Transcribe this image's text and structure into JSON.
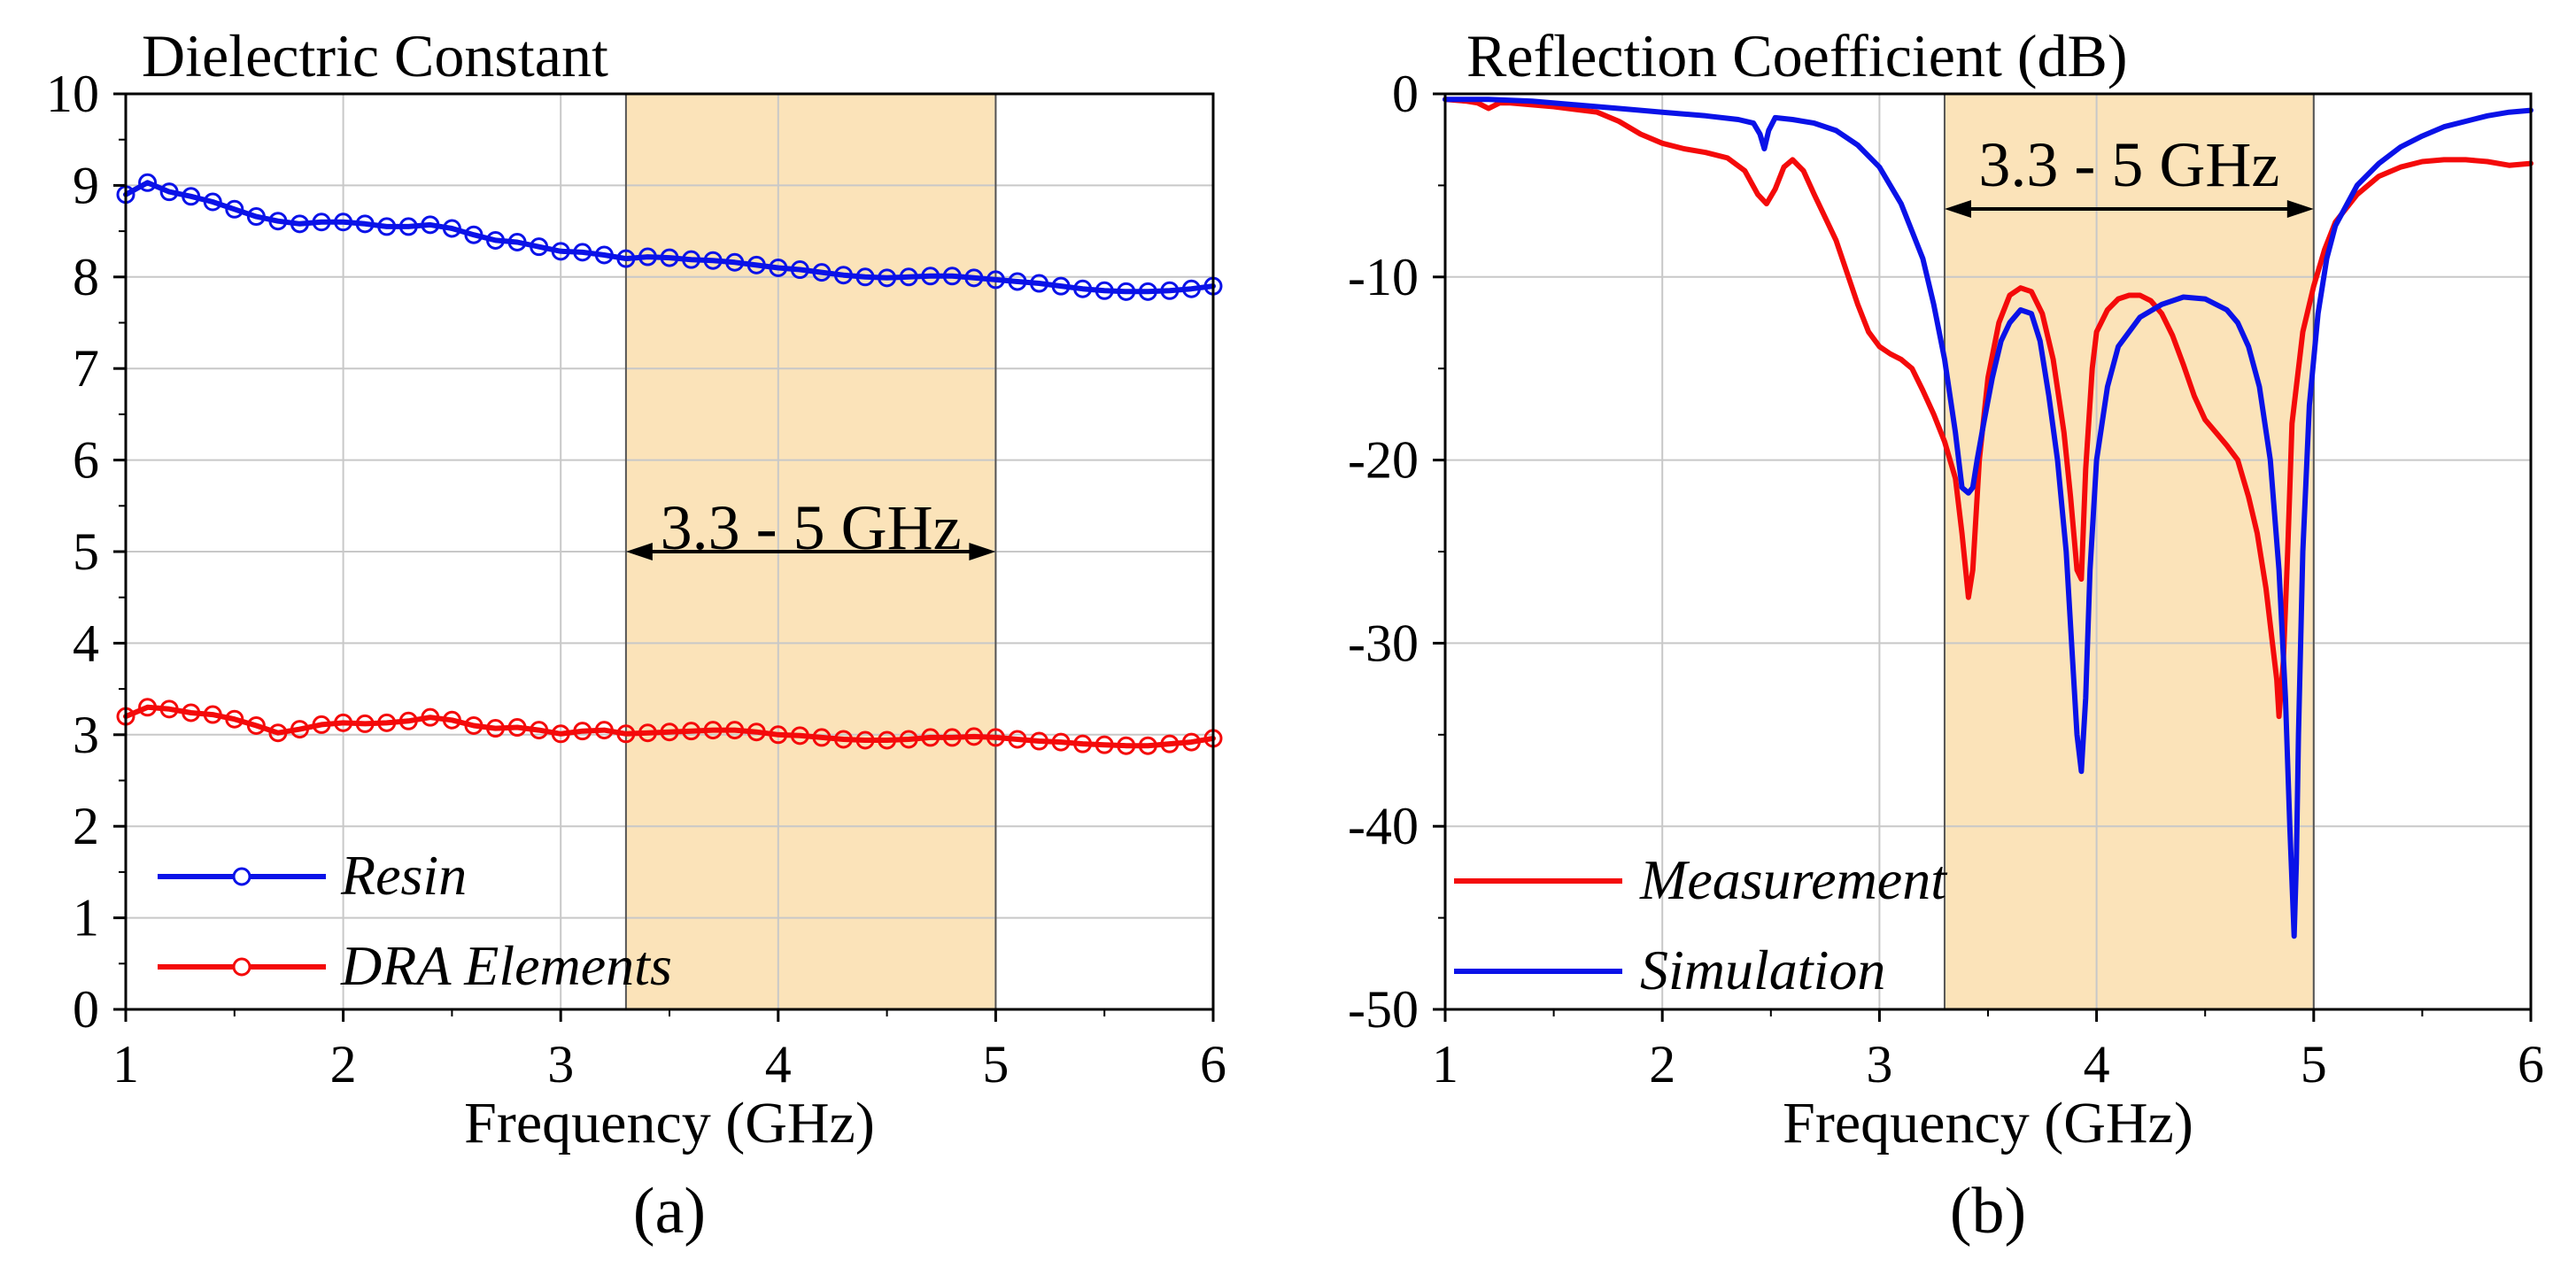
{
  "chart_data": [
    {
      "id": "a",
      "type": "line",
      "title": "Dielectric Constant",
      "xlabel": "Frequency (GHz)",
      "ylabel": "",
      "panel_label": "(a)",
      "xlim": [
        1,
        6
      ],
      "ylim": [
        0,
        10
      ],
      "xticks": [
        1,
        2,
        3,
        4,
        5,
        6
      ],
      "yticks": [
        0,
        1,
        2,
        3,
        4,
        5,
        6,
        7,
        8,
        9,
        10
      ],
      "xtick_labels": [
        "1",
        "2",
        "3",
        "4",
        "5",
        "6"
      ],
      "ytick_labels": [
        "0",
        "1",
        "2",
        "3",
        "4",
        "5",
        "6",
        "7",
        "8",
        "9",
        "10"
      ],
      "grid": true,
      "legend_position": "bottom-left",
      "band": {
        "start": 3.3,
        "end": 5,
        "label": "3.3 - 5 GHz",
        "color": "#fbe3b9"
      },
      "series": [
        {
          "name": "Resin",
          "color": "#0a12e8",
          "markers": true,
          "x": [
            1.0,
            1.1,
            1.2,
            1.3,
            1.4,
            1.5,
            1.6,
            1.7,
            1.8,
            1.9,
            2.0,
            2.1,
            2.2,
            2.3,
            2.4,
            2.5,
            2.6,
            2.7,
            2.8,
            2.9,
            3.0,
            3.1,
            3.2,
            3.3,
            3.4,
            3.5,
            3.6,
            3.7,
            3.8,
            3.9,
            4.0,
            4.1,
            4.2,
            4.3,
            4.4,
            4.5,
            4.6,
            4.7,
            4.8,
            4.9,
            5.0,
            5.1,
            5.2,
            5.3,
            5.4,
            5.5,
            5.6,
            5.7,
            5.8,
            5.9,
            6.0
          ],
          "y": [
            8.9,
            9.03,
            8.93,
            8.88,
            8.82,
            8.74,
            8.66,
            8.61,
            8.58,
            8.6,
            8.6,
            8.58,
            8.55,
            8.55,
            8.57,
            8.53,
            8.46,
            8.4,
            8.38,
            8.33,
            8.28,
            8.27,
            8.24,
            8.2,
            8.22,
            8.21,
            8.19,
            8.18,
            8.16,
            8.13,
            8.1,
            8.08,
            8.05,
            8.02,
            8.0,
            7.99,
            8.0,
            8.01,
            8.01,
            7.99,
            7.97,
            7.95,
            7.93,
            7.9,
            7.87,
            7.85,
            7.84,
            7.84,
            7.85,
            7.87,
            7.9
          ]
        },
        {
          "name": "DRA Elements",
          "color": "#f40a0a",
          "markers": true,
          "x": [
            1.0,
            1.1,
            1.2,
            1.3,
            1.4,
            1.5,
            1.6,
            1.7,
            1.8,
            1.9,
            2.0,
            2.1,
            2.2,
            2.3,
            2.4,
            2.5,
            2.6,
            2.7,
            2.8,
            2.9,
            3.0,
            3.1,
            3.2,
            3.3,
            3.4,
            3.5,
            3.6,
            3.7,
            3.8,
            3.9,
            4.0,
            4.1,
            4.2,
            4.3,
            4.4,
            4.5,
            4.6,
            4.7,
            4.8,
            4.9,
            5.0,
            5.1,
            5.2,
            5.3,
            5.4,
            5.5,
            5.6,
            5.7,
            5.8,
            5.9,
            6.0
          ],
          "y": [
            3.2,
            3.3,
            3.28,
            3.24,
            3.22,
            3.17,
            3.1,
            3.02,
            3.06,
            3.11,
            3.13,
            3.12,
            3.13,
            3.15,
            3.19,
            3.16,
            3.1,
            3.07,
            3.08,
            3.05,
            3.01,
            3.04,
            3.05,
            3.01,
            3.02,
            3.03,
            3.04,
            3.05,
            3.05,
            3.03,
            3.0,
            2.99,
            2.97,
            2.95,
            2.94,
            2.94,
            2.95,
            2.97,
            2.97,
            2.98,
            2.97,
            2.95,
            2.93,
            2.92,
            2.9,
            2.89,
            2.88,
            2.88,
            2.9,
            2.92,
            2.96
          ]
        }
      ]
    },
    {
      "id": "b",
      "type": "line",
      "title": "Reflection Coefficient (dB)",
      "xlabel": "Frequency (GHz)",
      "ylabel": "",
      "panel_label": "(b)",
      "xlim": [
        1,
        6
      ],
      "ylim": [
        -50,
        0
      ],
      "xticks": [
        1,
        2,
        3,
        4,
        5,
        6
      ],
      "yticks": [
        -50,
        -40,
        -30,
        -20,
        -10,
        0
      ],
      "xtick_labels": [
        "1",
        "2",
        "3",
        "4",
        "5",
        "6"
      ],
      "ytick_labels": [
        "-50",
        "-40",
        "-30",
        "-20",
        "-10",
        "0"
      ],
      "grid": true,
      "legend_position": "bottom-left",
      "band": {
        "start": 3.3,
        "end": 5,
        "label": "3.3 - 5 GHz",
        "color": "#fbe3b9"
      },
      "series": [
        {
          "name": "Measurement",
          "color": "#f40a0a",
          "markers": false,
          "x": [
            1.0,
            1.1,
            1.15,
            1.2,
            1.25,
            1.3,
            1.5,
            1.7,
            1.8,
            1.9,
            2.0,
            2.1,
            2.2,
            2.3,
            2.38,
            2.44,
            2.48,
            2.52,
            2.56,
            2.6,
            2.65,
            2.7,
            2.8,
            2.9,
            2.95,
            3.0,
            3.05,
            3.1,
            3.15,
            3.2,
            3.25,
            3.3,
            3.35,
            3.38,
            3.41,
            3.43,
            3.46,
            3.5,
            3.55,
            3.6,
            3.65,
            3.7,
            3.75,
            3.8,
            3.85,
            3.88,
            3.91,
            3.93,
            3.95,
            3.98,
            4.0,
            4.05,
            4.1,
            4.15,
            4.2,
            4.25,
            4.3,
            4.35,
            4.4,
            4.45,
            4.5,
            4.55,
            4.6,
            4.65,
            4.7,
            4.74,
            4.78,
            4.81,
            4.83,
            4.84,
            4.86,
            4.88,
            4.9,
            4.95,
            5.0,
            5.05,
            5.1,
            5.2,
            5.3,
            5.4,
            5.5,
            5.6,
            5.7,
            5.8,
            5.9,
            6.0
          ],
          "y": [
            -0.3,
            -0.4,
            -0.5,
            -0.8,
            -0.5,
            -0.5,
            -0.7,
            -1.0,
            -1.5,
            -2.2,
            -2.7,
            -3.0,
            -3.2,
            -3.5,
            -4.2,
            -5.5,
            -6.0,
            -5.2,
            -4.0,
            -3.6,
            -4.2,
            -5.5,
            -8.0,
            -11.5,
            -13.0,
            -13.8,
            -14.2,
            -14.5,
            -15.0,
            -16.2,
            -17.5,
            -19.0,
            -21.0,
            -24.0,
            -27.5,
            -26.0,
            -20.0,
            -15.5,
            -12.5,
            -11.0,
            -10.6,
            -10.8,
            -12.0,
            -14.5,
            -18.5,
            -22.0,
            -26.0,
            -26.5,
            -20.5,
            -15.0,
            -13.0,
            -11.8,
            -11.2,
            -11.0,
            -11.0,
            -11.3,
            -12.0,
            -13.2,
            -14.8,
            -16.5,
            -17.8,
            -18.5,
            -19.2,
            -20.0,
            -22.0,
            -24.0,
            -27.0,
            -30.0,
            -32.0,
            -34.0,
            -31.0,
            -25.0,
            -18.0,
            -13.0,
            -10.5,
            -8.5,
            -7.0,
            -5.5,
            -4.5,
            -4.0,
            -3.7,
            -3.6,
            -3.6,
            -3.7,
            -3.9,
            -3.8
          ]
        },
        {
          "name": "Simulation",
          "color": "#0a12e8",
          "markers": false,
          "x": [
            1.0,
            1.2,
            1.4,
            1.6,
            1.8,
            2.0,
            2.2,
            2.35,
            2.42,
            2.45,
            2.47,
            2.49,
            2.52,
            2.6,
            2.7,
            2.8,
            2.9,
            3.0,
            3.1,
            3.2,
            3.25,
            3.3,
            3.35,
            3.38,
            3.41,
            3.43,
            3.45,
            3.48,
            3.52,
            3.56,
            3.6,
            3.65,
            3.7,
            3.74,
            3.78,
            3.82,
            3.86,
            3.89,
            3.91,
            3.93,
            3.95,
            3.97,
            4.0,
            4.05,
            4.1,
            4.2,
            4.3,
            4.4,
            4.5,
            4.6,
            4.65,
            4.7,
            4.75,
            4.8,
            4.84,
            4.87,
            4.89,
            4.91,
            4.92,
            4.93,
            4.95,
            4.98,
            5.02,
            5.06,
            5.1,
            5.2,
            5.3,
            5.4,
            5.5,
            5.6,
            5.7,
            5.8,
            5.9,
            6.0
          ],
          "y": [
            -0.3,
            -0.3,
            -0.4,
            -0.6,
            -0.8,
            -1.0,
            -1.2,
            -1.4,
            -1.6,
            -2.2,
            -3.0,
            -2.0,
            -1.3,
            -1.4,
            -1.6,
            -2.0,
            -2.8,
            -4.0,
            -6.0,
            -9.0,
            -11.5,
            -14.5,
            -18.5,
            -21.5,
            -21.8,
            -21.5,
            -20.0,
            -18.0,
            -15.5,
            -13.5,
            -12.5,
            -11.8,
            -12.0,
            -13.5,
            -16.5,
            -20.0,
            -25.0,
            -31.0,
            -35.0,
            -37.0,
            -33.0,
            -26.0,
            -20.0,
            -16.0,
            -13.8,
            -12.2,
            -11.5,
            -11.1,
            -11.2,
            -11.8,
            -12.5,
            -13.8,
            -16.0,
            -20.0,
            -26.0,
            -33.0,
            -40.0,
            -46.0,
            -42.0,
            -35.0,
            -25.0,
            -17.0,
            -12.0,
            -9.0,
            -7.2,
            -5.0,
            -3.8,
            -2.9,
            -2.3,
            -1.8,
            -1.5,
            -1.2,
            -1.0,
            -0.9
          ]
        }
      ]
    }
  ]
}
